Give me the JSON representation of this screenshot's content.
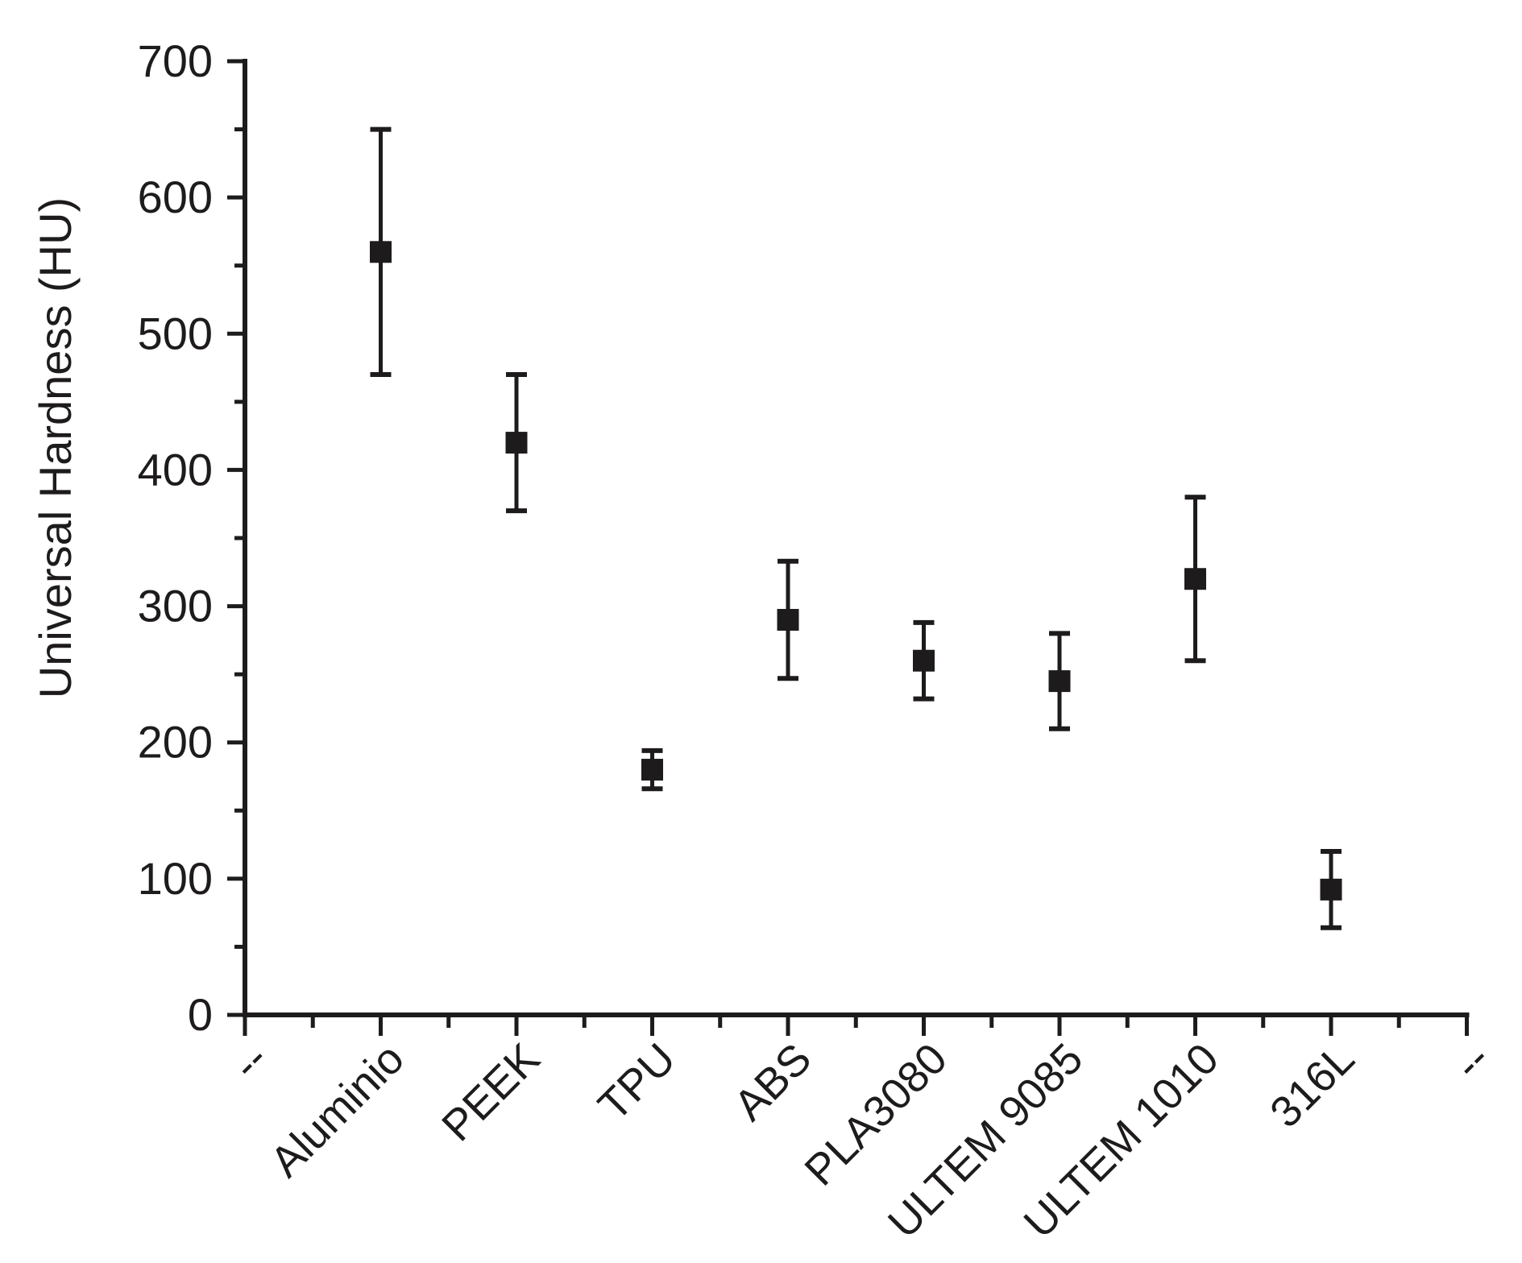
{
  "chart_data": {
    "type": "scatter",
    "title": "",
    "xlabel": "",
    "ylabel": "Universal Hardness (HU)",
    "ylim": [
      0,
      700
    ],
    "y_major_step": 100,
    "y_minor_step": 50,
    "y_tick_labels": [
      "0",
      "100",
      "200",
      "300",
      "400",
      "500",
      "600",
      "700"
    ],
    "x_end_labels": [
      "--",
      "--"
    ],
    "categories": [
      "Aluminio",
      "PEEK",
      "TPU",
      "ABS",
      "PLA3080",
      "ULTEM 9085",
      "ULTEM 1010",
      "316L"
    ],
    "series": [
      {
        "name": "Universal Hardness",
        "values": [
          560,
          420,
          180,
          290,
          260,
          245,
          320,
          92
        ],
        "error_upper": [
          650,
          470,
          194,
          333,
          288,
          280,
          380,
          120
        ],
        "error_lower": [
          470,
          370,
          166,
          247,
          232,
          210,
          260,
          64
        ]
      }
    ],
    "marker": "filled-square",
    "legend": "none",
    "grid": "off",
    "ink_color": "#1e1b1c",
    "background_color": "#ffffff"
  }
}
